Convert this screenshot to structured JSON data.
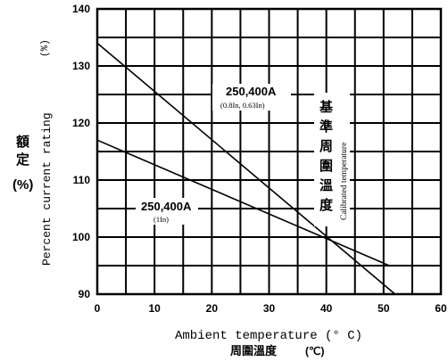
{
  "chart_data": {
    "type": "line",
    "xlabel": "Ambient temperature (° C)",
    "xlabel_cjk": "周圍溫度",
    "xlabel_unit": "(℃)",
    "ylabel": "Percent current rating",
    "ylabel_unit": "(%)",
    "ylabel_cjk": [
      "額",
      "定"
    ],
    "ylabel_cjk_unit": "(%)",
    "xlim": [
      0,
      60
    ],
    "ylim": [
      90,
      140
    ],
    "x_ticks": [
      0,
      10,
      20,
      30,
      40,
      50,
      60
    ],
    "y_ticks": [
      90,
      100,
      110,
      120,
      130,
      140
    ],
    "x_grid": [
      0,
      5,
      10,
      15,
      20,
      25,
      30,
      35,
      40,
      45,
      50,
      55,
      60
    ],
    "y_grid": [
      90,
      95,
      100,
      105,
      110,
      115,
      120,
      125,
      130,
      135,
      140
    ],
    "grid": true,
    "series": [
      {
        "name": "250,400A",
        "note": "(0.8In, 0.63In)",
        "x": [
          0,
          52
        ],
        "y": [
          134,
          90
        ]
      },
      {
        "name": "250,400A",
        "note": "(1In)",
        "x": [
          0,
          51
        ],
        "y": [
          117,
          95
        ]
      }
    ],
    "annotations": {
      "calibrated_cjk": [
        "基",
        "準",
        "周",
        "圍",
        "溫",
        "度"
      ],
      "calibrated_en": "Calibrated temperature"
    }
  }
}
